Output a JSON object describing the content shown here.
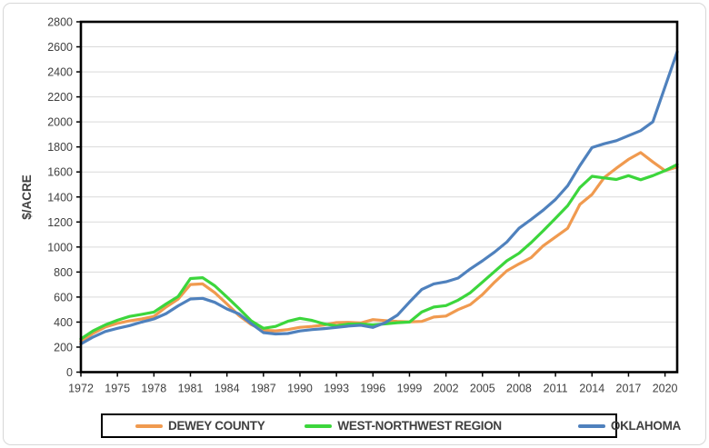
{
  "figure": {
    "ylabel": "$/ACRE",
    "background": "#ffffff",
    "frame_border_color": "#d7d7d7",
    "plot_border_color": "#000000",
    "gridline_color": "#d9d9d9",
    "text_color": "#404040"
  },
  "legend": {
    "position": "bottom",
    "items": [
      {
        "label": "DEWEY COUNTY",
        "color": "#F09A4F"
      },
      {
        "label": "WEST-NORTHWEST REGION",
        "color": "#3CD63C"
      },
      {
        "label": "OKLAHOMA",
        "color": "#4F81BD"
      }
    ]
  },
  "chart_data": {
    "type": "line",
    "title": "",
    "xlabel": "",
    "ylabel": "$/ACRE",
    "ylim": [
      0,
      2800
    ],
    "y_ticks": [
      0,
      200,
      400,
      600,
      800,
      1000,
      1200,
      1400,
      1600,
      1800,
      2000,
      2200,
      2400,
      2600,
      2800
    ],
    "x_tick_labels": [
      "1972",
      "1975",
      "1978",
      "1981",
      "1984",
      "1987",
      "1990",
      "1993",
      "1996",
      "1999",
      "2002",
      "2005",
      "2008",
      "2011",
      "2014",
      "2017",
      "2020"
    ],
    "x": [
      1972,
      1973,
      1974,
      1975,
      1976,
      1977,
      1978,
      1979,
      1980,
      1981,
      1982,
      1983,
      1984,
      1985,
      1986,
      1987,
      1988,
      1989,
      1990,
      1991,
      1992,
      1993,
      1994,
      1995,
      1996,
      1997,
      1998,
      1999,
      2000,
      2001,
      2002,
      2003,
      2004,
      2005,
      2006,
      2007,
      2008,
      2009,
      2010,
      2011,
      2012,
      2013,
      2014,
      2015,
      2016,
      2017,
      2018,
      2019,
      2020,
      2021
    ],
    "xlim": [
      1972,
      2021
    ],
    "grid": "horizontal-only",
    "legend_position": "bottom",
    "series": [
      {
        "name": "DEWEY COUNTY",
        "color": "#F09A4F",
        "values": [
          245,
          310,
          360,
          390,
          410,
          425,
          445,
          520,
          585,
          700,
          705,
          635,
          545,
          452,
          380,
          335,
          330,
          340,
          358,
          365,
          377,
          396,
          398,
          393,
          420,
          412,
          405,
          402,
          405,
          440,
          448,
          500,
          540,
          620,
          720,
          810,
          865,
          915,
          1010,
          1080,
          1150,
          1340,
          1420,
          1555,
          1630,
          1700,
          1755,
          1680,
          1610,
          1640
        ]
      },
      {
        "name": "WEST-NORTHWEST REGION",
        "color": "#3CD63C",
        "values": [
          265,
          330,
          378,
          415,
          445,
          462,
          480,
          545,
          605,
          748,
          755,
          690,
          600,
          508,
          410,
          350,
          365,
          406,
          430,
          413,
          385,
          370,
          384,
          385,
          378,
          386,
          395,
          400,
          480,
          520,
          532,
          575,
          635,
          720,
          805,
          890,
          950,
          1035,
          1130,
          1230,
          1330,
          1475,
          1565,
          1552,
          1540,
          1570,
          1538,
          1570,
          1610,
          1660
        ]
      },
      {
        "name": "OKLAHOMA",
        "color": "#4F81BD",
        "values": [
          225,
          280,
          325,
          350,
          372,
          400,
          425,
          468,
          530,
          585,
          590,
          558,
          505,
          465,
          388,
          316,
          305,
          309,
          329,
          340,
          348,
          357,
          368,
          375,
          357,
          395,
          455,
          560,
          660,
          705,
          722,
          752,
          825,
          890,
          960,
          1040,
          1150,
          1220,
          1295,
          1380,
          1490,
          1650,
          1795,
          1825,
          1850,
          1890,
          1930,
          2000,
          2280,
          2560
        ]
      }
    ]
  }
}
